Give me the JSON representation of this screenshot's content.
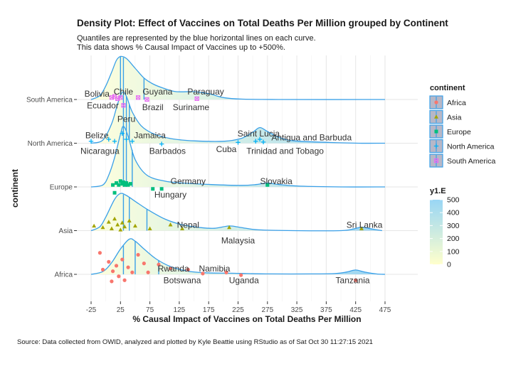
{
  "chart_data": {
    "type": "density_ridgeline",
    "title": "Density Plot: Effect of Vaccines on Total Deaths Per Million grouped by Continent",
    "subtitle_lines": [
      "Quantiles are represented by the blue horizontal lines on each curve.",
      "This data shows % Causal Impact of Vaccines up to +500%."
    ],
    "xlabel": "% Causal Impact of Vaccines on Total Deaths Per Million",
    "ylabel": "continent",
    "caption": "Source: Data collected from OWID, analyzed and plotted by Kyle Beattie using RStudio as of Sat Oct 30 11:27:15 2021",
    "xlim": [
      -35,
      500
    ],
    "x_ticks": [
      -25,
      25,
      75,
      125,
      175,
      225,
      275,
      325,
      375,
      425,
      475
    ],
    "grid": true,
    "legend_position": "right",
    "categories": [
      "Africa",
      "Asia",
      "Europe",
      "North America",
      "South America"
    ],
    "series": [
      {
        "name": "Africa",
        "color": "#f8766d",
        "marker": "circle",
        "quantiles": [
          30,
          50,
          90
        ],
        "density": [
          [
            -25,
            0.0
          ],
          [
            -5,
            0.07
          ],
          [
            10,
            0.3
          ],
          [
            25,
            0.65
          ],
          [
            40,
            0.9
          ],
          [
            50,
            0.85
          ],
          [
            65,
            0.65
          ],
          [
            85,
            0.4
          ],
          [
            110,
            0.2
          ],
          [
            140,
            0.08
          ],
          [
            170,
            0.04
          ],
          [
            210,
            0.03
          ],
          [
            240,
            0.02
          ],
          [
            280,
            0.01
          ],
          [
            350,
            0.01
          ],
          [
            390,
            0.02
          ],
          [
            410,
            0.06
          ],
          [
            425,
            0.11
          ],
          [
            440,
            0.06
          ],
          [
            460,
            0.01
          ],
          [
            475,
            0.0
          ]
        ],
        "points": [
          {
            "x": -10,
            "y": 0.55
          },
          {
            "x": -5,
            "y": 0.12
          },
          {
            "x": 5,
            "y": 0.32
          },
          {
            "x": 10,
            "y": -0.18
          },
          {
            "x": 12,
            "y": 0.08
          },
          {
            "x": 18,
            "y": 0.22
          },
          {
            "x": 22,
            "y": -0.05
          },
          {
            "x": 28,
            "y": 0.38
          },
          {
            "x": 32,
            "y": -0.15
          },
          {
            "x": 38,
            "y": 0.18
          },
          {
            "x": 45,
            "y": 0.05
          },
          {
            "x": 55,
            "y": 0.5
          },
          {
            "x": 65,
            "y": 0.28
          },
          {
            "x": 72,
            "y": 0.05
          },
          {
            "x": 90,
            "y": 0.25
          },
          {
            "x": 110,
            "y": 0.15
          },
          {
            "x": 140,
            "y": 0.12
          },
          {
            "x": 165,
            "y": 0.02
          },
          {
            "x": 205,
            "y": 0.05
          },
          {
            "x": 230,
            "y": -0.02
          },
          {
            "x": 425,
            "y": -0.15
          }
        ],
        "labels": [
          {
            "text": "Rwanda",
            "x": 115,
            "y": 0.15
          },
          {
            "text": "Namibia",
            "x": 185,
            "y": 0.15
          },
          {
            "text": "Botswana",
            "x": 130,
            "y": -0.15
          },
          {
            "text": "Uganda",
            "x": 235,
            "y": -0.15
          },
          {
            "text": "Tanzania",
            "x": 420,
            "y": -0.15
          }
        ]
      },
      {
        "name": "Asia",
        "color": "#a3a500",
        "marker": "triangle",
        "quantiles": [
          30,
          40,
          70
        ],
        "density": [
          [
            -25,
            0.0
          ],
          [
            -10,
            0.1
          ],
          [
            0,
            0.35
          ],
          [
            15,
            0.8
          ],
          [
            25,
            0.95
          ],
          [
            35,
            0.9
          ],
          [
            50,
            0.75
          ],
          [
            70,
            0.55
          ],
          [
            100,
            0.3
          ],
          [
            130,
            0.15
          ],
          [
            160,
            0.08
          ],
          [
            185,
            0.06
          ],
          [
            210,
            0.12
          ],
          [
            230,
            0.08
          ],
          [
            260,
            0.02
          ],
          [
            320,
            0.0
          ],
          [
            400,
            0.0
          ],
          [
            420,
            0.04
          ],
          [
            435,
            0.09
          ],
          [
            450,
            0.05
          ],
          [
            470,
            0.0
          ]
        ],
        "points": [
          {
            "x": -20,
            "y": 0.12
          },
          {
            "x": -5,
            "y": 0.08
          },
          {
            "x": 5,
            "y": 0.22
          },
          {
            "x": 10,
            "y": 0.05
          },
          {
            "x": 15,
            "y": 0.3
          },
          {
            "x": 20,
            "y": 0.15
          },
          {
            "x": 25,
            "y": 0.02
          },
          {
            "x": 28,
            "y": 0.2
          },
          {
            "x": 32,
            "y": 0.1
          },
          {
            "x": 40,
            "y": 0.25
          },
          {
            "x": 50,
            "y": 0.12
          },
          {
            "x": 75,
            "y": 0.05
          },
          {
            "x": 110,
            "y": 0.15
          },
          {
            "x": 130,
            "y": 0.05
          },
          {
            "x": 210,
            "y": 0.08
          },
          {
            "x": 435,
            "y": 0.05
          }
        ],
        "labels": [
          {
            "text": "Nepal",
            "x": 140,
            "y": 0.15
          },
          {
            "text": "Malaysia",
            "x": 225,
            "y": -0.25
          },
          {
            "text": "Sri Lanka",
            "x": 440,
            "y": 0.15
          }
        ]
      },
      {
        "name": "Europe",
        "color": "#00bf7d",
        "marker": "square",
        "quantiles": [
          30,
          35,
          45
        ],
        "density": [
          [
            -25,
            0.0
          ],
          [
            -5,
            0.05
          ],
          [
            5,
            0.3
          ],
          [
            15,
            0.75
          ],
          [
            25,
            1.35
          ],
          [
            30,
            1.55
          ],
          [
            38,
            1.3
          ],
          [
            50,
            0.7
          ],
          [
            70,
            0.3
          ],
          [
            100,
            0.15
          ],
          [
            130,
            0.1
          ],
          [
            180,
            0.06
          ],
          [
            230,
            0.04
          ],
          [
            255,
            0.06
          ],
          [
            275,
            0.1
          ],
          [
            295,
            0.06
          ],
          [
            330,
            0.02
          ],
          [
            400,
            0.0
          ],
          [
            475,
            0.0
          ]
        ],
        "points": [
          {
            "x": 12,
            "y": 0.05
          },
          {
            "x": 15,
            "y": -0.15
          },
          {
            "x": 18,
            "y": 0.1
          },
          {
            "x": 22,
            "y": 0.05
          },
          {
            "x": 25,
            "y": 0.15
          },
          {
            "x": 28,
            "y": 0.08
          },
          {
            "x": 30,
            "y": 0.12
          },
          {
            "x": 32,
            "y": 0.05
          },
          {
            "x": 35,
            "y": 0.1
          },
          {
            "x": 38,
            "y": 0.05
          },
          {
            "x": 42,
            "y": 0.08
          },
          {
            "x": 80,
            "y": -0.05
          },
          {
            "x": 95,
            "y": -0.05
          },
          {
            "x": 275,
            "y": 0.05
          }
        ],
        "labels": [
          {
            "text": "Germany",
            "x": 140,
            "y": 0.15
          },
          {
            "text": "Hungary",
            "x": 110,
            "y": -0.2
          },
          {
            "text": "Slovakia",
            "x": 290,
            "y": 0.15
          }
        ]
      },
      {
        "name": "North America",
        "color": "#00b0f6",
        "marker": "plus",
        "quantiles": [
          30,
          35,
          40
        ],
        "density": [
          [
            -25,
            0.0
          ],
          [
            -5,
            0.08
          ],
          [
            10,
            0.5
          ],
          [
            20,
            1.0
          ],
          [
            28,
            1.3
          ],
          [
            35,
            1.2
          ],
          [
            45,
            0.8
          ],
          [
            60,
            0.45
          ],
          [
            80,
            0.25
          ],
          [
            110,
            0.12
          ],
          [
            150,
            0.06
          ],
          [
            200,
            0.05
          ],
          [
            230,
            0.12
          ],
          [
            250,
            0.28
          ],
          [
            262,
            0.4
          ],
          [
            275,
            0.3
          ],
          [
            295,
            0.15
          ],
          [
            320,
            0.06
          ],
          [
            380,
            0.02
          ],
          [
            430,
            0.0
          ],
          [
            475,
            0.0
          ]
        ],
        "points": [
          {
            "x": -25,
            "y": 0.05
          },
          {
            "x": 5,
            "y": 0.1
          },
          {
            "x": 15,
            "y": 0.05
          },
          {
            "x": 28,
            "y": 0.25
          },
          {
            "x": 35,
            "y": 0.1
          },
          {
            "x": 45,
            "y": 0.05
          },
          {
            "x": 95,
            "y": -0.02
          },
          {
            "x": 225,
            "y": 0.02
          },
          {
            "x": 255,
            "y": 0.05
          },
          {
            "x": 262,
            "y": 0.1
          },
          {
            "x": 268,
            "y": 0.03
          }
        ],
        "labels": [
          {
            "text": "Belize",
            "x": -15,
            "y": 0.2
          },
          {
            "text": "Jamaica",
            "x": 75,
            "y": 0.2
          },
          {
            "text": "Nicaragua",
            "x": -10,
            "y": -0.2
          },
          {
            "text": "Barbados",
            "x": 105,
            "y": -0.2
          },
          {
            "text": "Saint Lucia",
            "x": 260,
            "y": 0.25
          },
          {
            "text": "Antigua and Barbuda",
            "x": 350,
            "y": 0.15
          },
          {
            "text": "Cuba",
            "x": 205,
            "y": -0.15
          },
          {
            "text": "Trinidad and Tobago",
            "x": 305,
            "y": -0.2
          }
        ]
      },
      {
        "name": "South America",
        "color": "#e76bf3",
        "marker": "square-cross",
        "quantiles": [
          25,
          30,
          65
        ],
        "density": [
          [
            -25,
            0.0
          ],
          [
            -10,
            0.1
          ],
          [
            0,
            0.35
          ],
          [
            10,
            0.7
          ],
          [
            18,
            1.0
          ],
          [
            25,
            1.1
          ],
          [
            35,
            1.05
          ],
          [
            50,
            0.8
          ],
          [
            65,
            0.55
          ],
          [
            80,
            0.4
          ],
          [
            100,
            0.28
          ],
          [
            120,
            0.2
          ],
          [
            150,
            0.2
          ],
          [
            175,
            0.15
          ],
          [
            200,
            0.05
          ],
          [
            230,
            0.01
          ],
          [
            300,
            0.0
          ],
          [
            475,
            0.0
          ]
        ],
        "points": [
          {
            "x": 10,
            "y": 0.05
          },
          {
            "x": 15,
            "y": 0.08
          },
          {
            "x": 20,
            "y": 0.02
          },
          {
            "x": 25,
            "y": 0.05
          },
          {
            "x": 30,
            "y": -0.15
          },
          {
            "x": 55,
            "y": 0.05
          },
          {
            "x": 70,
            "y": 0.0
          },
          {
            "x": 155,
            "y": 0.02
          }
        ],
        "labels": [
          {
            "text": "Bolivia",
            "x": -15,
            "y": 0.15
          },
          {
            "text": "Chile",
            "x": 30,
            "y": 0.2
          },
          {
            "text": "Guyana",
            "x": 88,
            "y": 0.2
          },
          {
            "text": "Paraguay",
            "x": 170,
            "y": 0.2
          },
          {
            "text": "Ecuador",
            "x": -5,
            "y": -0.15
          },
          {
            "text": "Brazil",
            "x": 80,
            "y": -0.2
          },
          {
            "text": "Suriname",
            "x": 145,
            "y": -0.2
          },
          {
            "text": "Peru",
            "x": 35,
            "y": -0.5
          }
        ]
      }
    ],
    "fill_legend": {
      "title": "y1.E",
      "range": [
        0,
        500
      ],
      "ticks": [
        "500",
        "400",
        "300",
        "200",
        "100",
        "0"
      ],
      "low_color": "#ffffcc",
      "high_color": "#99d6f5"
    },
    "color_legend": {
      "title": "continent",
      "keys": [
        "Africa",
        "Asia",
        "Europe",
        "North America",
        "South America"
      ]
    }
  }
}
